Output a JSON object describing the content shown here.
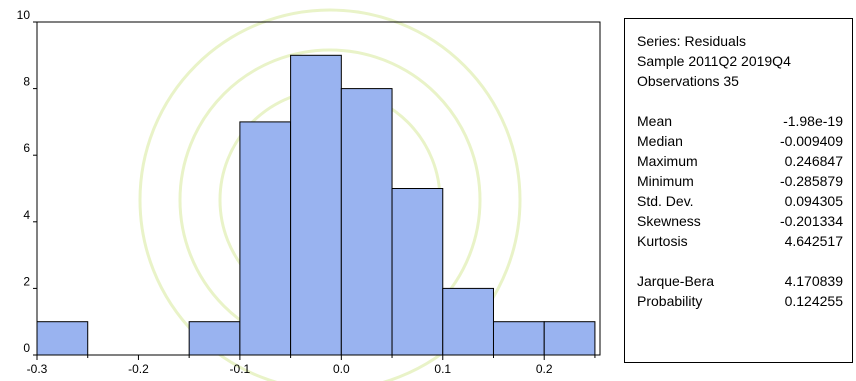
{
  "chart_data": {
    "type": "histogram",
    "bins": [
      {
        "from": -0.3,
        "to": -0.25,
        "count": 1
      },
      {
        "from": -0.25,
        "to": -0.2,
        "count": 0
      },
      {
        "from": -0.2,
        "to": -0.15,
        "count": 0
      },
      {
        "from": -0.15,
        "to": -0.1,
        "count": 1
      },
      {
        "from": -0.1,
        "to": -0.05,
        "count": 7
      },
      {
        "from": -0.05,
        "to": 0.0,
        "count": 9
      },
      {
        "from": 0.0,
        "to": 0.05,
        "count": 8
      },
      {
        "from": 0.05,
        "to": 0.1,
        "count": 5
      },
      {
        "from": 0.1,
        "to": 0.15,
        "count": 2
      },
      {
        "from": 0.15,
        "to": 0.2,
        "count": 1
      },
      {
        "from": 0.2,
        "to": 0.25,
        "count": 1
      }
    ],
    "xlim": [
      -0.3,
      0.255
    ],
    "ylim": [
      0,
      10
    ],
    "xticks": [
      {
        "value": -0.3,
        "label": "-0.3"
      },
      {
        "value": -0.2,
        "label": "-0.2"
      },
      {
        "value": -0.1,
        "label": "-0.1"
      },
      {
        "value": 0.0,
        "label": "0.0"
      },
      {
        "value": 0.1,
        "label": "0.1"
      },
      {
        "value": 0.2,
        "label": "0.2"
      }
    ],
    "yticks": [
      {
        "value": 0,
        "label": "0"
      },
      {
        "value": 2,
        "label": "2"
      },
      {
        "value": 4,
        "label": "4"
      },
      {
        "value": 6,
        "label": "6"
      },
      {
        "value": 8,
        "label": "8"
      },
      {
        "value": 10,
        "label": "10"
      }
    ],
    "bar_color": "#99b3f0",
    "edge_color": "#000000",
    "grid": false,
    "legend": "none"
  },
  "stats": {
    "header": [
      "Series: Residuals",
      "Sample 2011Q2 2019Q4",
      "Observations 35"
    ],
    "moments": [
      {
        "label": "Mean",
        "value": "-1.98e-19"
      },
      {
        "label": "Median",
        "value": "-0.009409"
      },
      {
        "label": "Maximum",
        "value": "0.246847"
      },
      {
        "label": "Minimum",
        "value": "-0.285879"
      },
      {
        "label": "Std. Dev.",
        "value": "0.094305"
      },
      {
        "label": "Skewness",
        "value": "-0.201334"
      },
      {
        "label": "Kurtosis",
        "value": "4.642517"
      }
    ],
    "tests": [
      {
        "label": "Jarque-Bera",
        "value": "4.170839"
      },
      {
        "label": "Probability",
        "value": "0.124255"
      }
    ]
  },
  "watermark_color": "#e9f3c8"
}
